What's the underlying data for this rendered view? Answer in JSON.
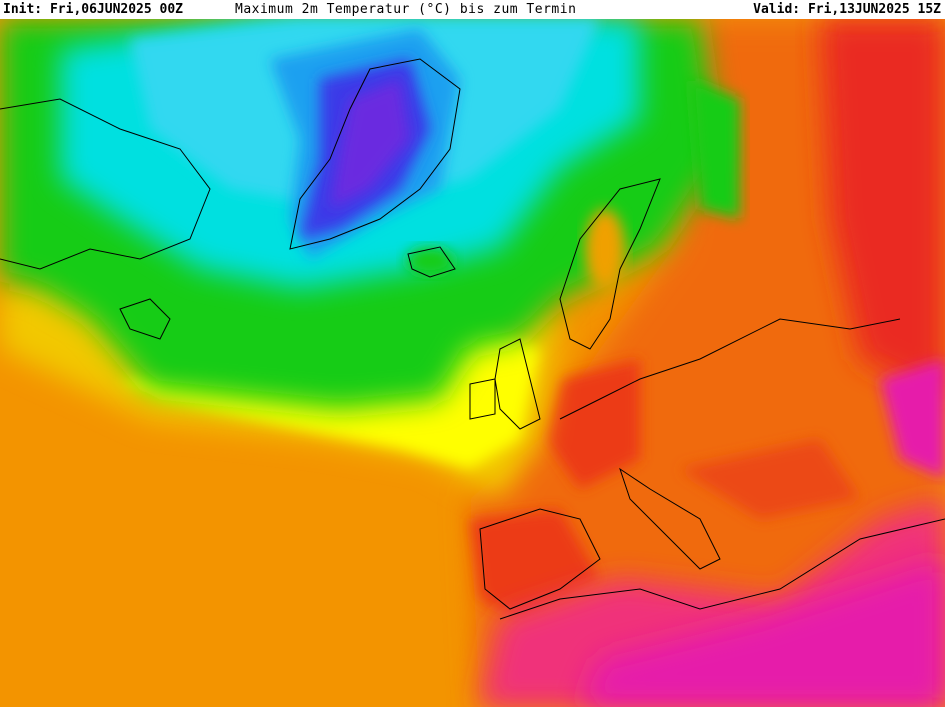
{
  "header": {
    "init": "Init: Fri,06JUN2025 00Z",
    "title": "Maximum 2m Temperatur (°C) bis zum Termin",
    "valid": "Valid: Fri,13JUN2025 15Z"
  }
}
